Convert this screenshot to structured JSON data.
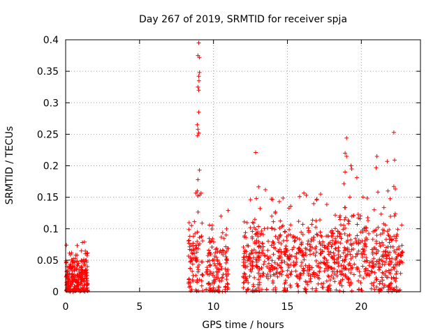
{
  "chart_data": {
    "type": "scatter",
    "title": "Day 267 of 2019, SRMTID for receiver spja",
    "xlabel": "GPS time / hours",
    "ylabel": "SRMTID / TECUs",
    "xlim": [
      0,
      24
    ],
    "ylim": [
      0,
      0.4
    ],
    "xticks": [
      0,
      5,
      10,
      15,
      20
    ],
    "yticks": [
      0,
      0.05,
      0.1,
      0.15,
      0.2,
      0.25,
      0.3,
      0.35,
      0.4
    ],
    "ytick_labels": [
      "0",
      "0.05",
      "0.1",
      "0.15",
      "0.2",
      "0.25",
      "0.3",
      "0.35",
      "0.4"
    ],
    "grid": true,
    "marker": "+",
    "color": "#ff0000",
    "segments": [
      {
        "x0": 0.0,
        "x1": 1.5,
        "base": 0.022,
        "spread": 0.025,
        "count": 260
      },
      {
        "x0": 8.3,
        "x1": 9.3,
        "base": 0.04,
        "spread": 0.05,
        "count": 90
      },
      {
        "x0": 9.5,
        "x1": 11.0,
        "base": 0.035,
        "spread": 0.045,
        "count": 130
      },
      {
        "x0": 12.0,
        "x1": 15.0,
        "base": 0.05,
        "spread": 0.05,
        "count": 260
      },
      {
        "x0": 15.0,
        "x1": 18.5,
        "base": 0.05,
        "spread": 0.045,
        "count": 280
      },
      {
        "x0": 18.5,
        "x1": 20.5,
        "base": 0.06,
        "spread": 0.055,
        "count": 160
      },
      {
        "x0": 20.5,
        "x1": 22.8,
        "base": 0.045,
        "spread": 0.05,
        "count": 200
      }
    ],
    "highlights": [
      {
        "x": 9.0,
        "y": 0.395
      },
      {
        "x": 8.95,
        "y": 0.375
      },
      {
        "x": 9.05,
        "y": 0.372
      },
      {
        "x": 9.05,
        "y": 0.348
      },
      {
        "x": 9.0,
        "y": 0.342
      },
      {
        "x": 9.02,
        "y": 0.335
      },
      {
        "x": 8.95,
        "y": 0.325
      },
      {
        "x": 9.0,
        "y": 0.32
      },
      {
        "x": 9.0,
        "y": 0.285
      },
      {
        "x": 8.9,
        "y": 0.265
      },
      {
        "x": 8.95,
        "y": 0.258
      },
      {
        "x": 8.92,
        "y": 0.248
      },
      {
        "x": 9.0,
        "y": 0.252
      },
      {
        "x": 9.05,
        "y": 0.193
      },
      {
        "x": 8.95,
        "y": 0.178
      },
      {
        "x": 8.9,
        "y": 0.16
      },
      {
        "x": 8.95,
        "y": 0.152
      },
      {
        "x": 12.85,
        "y": 0.221
      },
      {
        "x": 12.9,
        "y": 0.148
      },
      {
        "x": 19.0,
        "y": 0.244
      },
      {
        "x": 18.9,
        "y": 0.22
      },
      {
        "x": 19.0,
        "y": 0.215
      },
      {
        "x": 19.3,
        "y": 0.2
      },
      {
        "x": 19.35,
        "y": 0.195
      },
      {
        "x": 18.9,
        "y": 0.19
      },
      {
        "x": 21.05,
        "y": 0.215
      },
      {
        "x": 21.0,
        "y": 0.197
      },
      {
        "x": 22.2,
        "y": 0.253
      },
      {
        "x": 22.25,
        "y": 0.209
      },
      {
        "x": 21.75,
        "y": 0.207
      },
      {
        "x": 22.2,
        "y": 0.167
      },
      {
        "x": 22.3,
        "y": 0.163
      },
      {
        "x": 21.8,
        "y": 0.16
      },
      {
        "x": 17.25,
        "y": 0.155
      },
      {
        "x": 14.45,
        "y": 0.143
      },
      {
        "x": 10.5,
        "y": 0.12
      }
    ]
  }
}
